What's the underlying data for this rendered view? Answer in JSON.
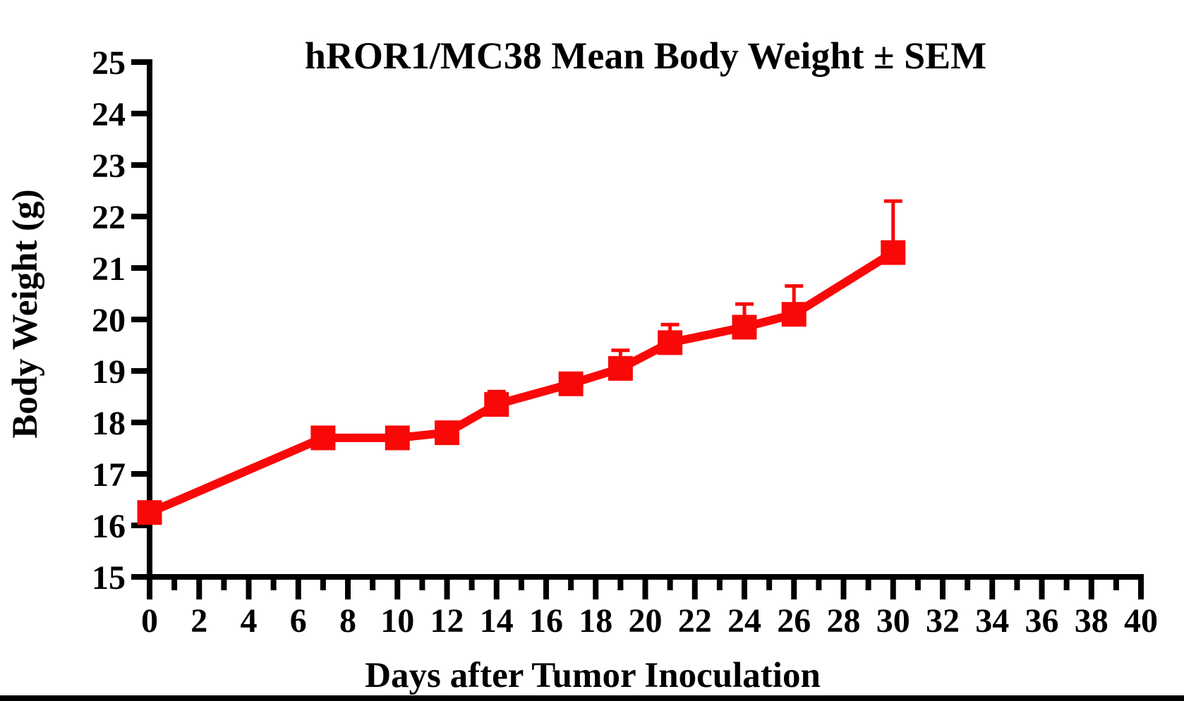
{
  "page": {
    "background": "#ffffff",
    "footer_bar_color": "#000000"
  },
  "chart_data": {
    "type": "line",
    "title": "hROR1/MC38 Mean Body Weight ± SEM",
    "xlabel": "Days after Tumor Inoculation",
    "ylabel": "Body Weight (g)",
    "xlim": [
      0,
      40
    ],
    "ylim": [
      15,
      25
    ],
    "x_major_tick_step": 2,
    "x_minor_tick_step": 1,
    "y_tick_step": 1,
    "grid": false,
    "legend_position": "none",
    "axis_color": "#000000",
    "error_bars": "SEM, upper whisker only, with cap",
    "marker": "filled-square",
    "series": [
      {
        "name": "hROR1/MC38 mean body weight",
        "color": "#f90808",
        "x": [
          0,
          7,
          10,
          12,
          14,
          17,
          19,
          21,
          24,
          26,
          30
        ],
        "y": [
          16.25,
          17.7,
          17.7,
          17.8,
          18.35,
          18.75,
          19.05,
          19.55,
          19.85,
          20.1,
          21.3
        ],
        "sem_upper": [
          0,
          0,
          0,
          0,
          0.25,
          0,
          0.35,
          0.35,
          0.45,
          0.55,
          1.0
        ]
      }
    ]
  }
}
